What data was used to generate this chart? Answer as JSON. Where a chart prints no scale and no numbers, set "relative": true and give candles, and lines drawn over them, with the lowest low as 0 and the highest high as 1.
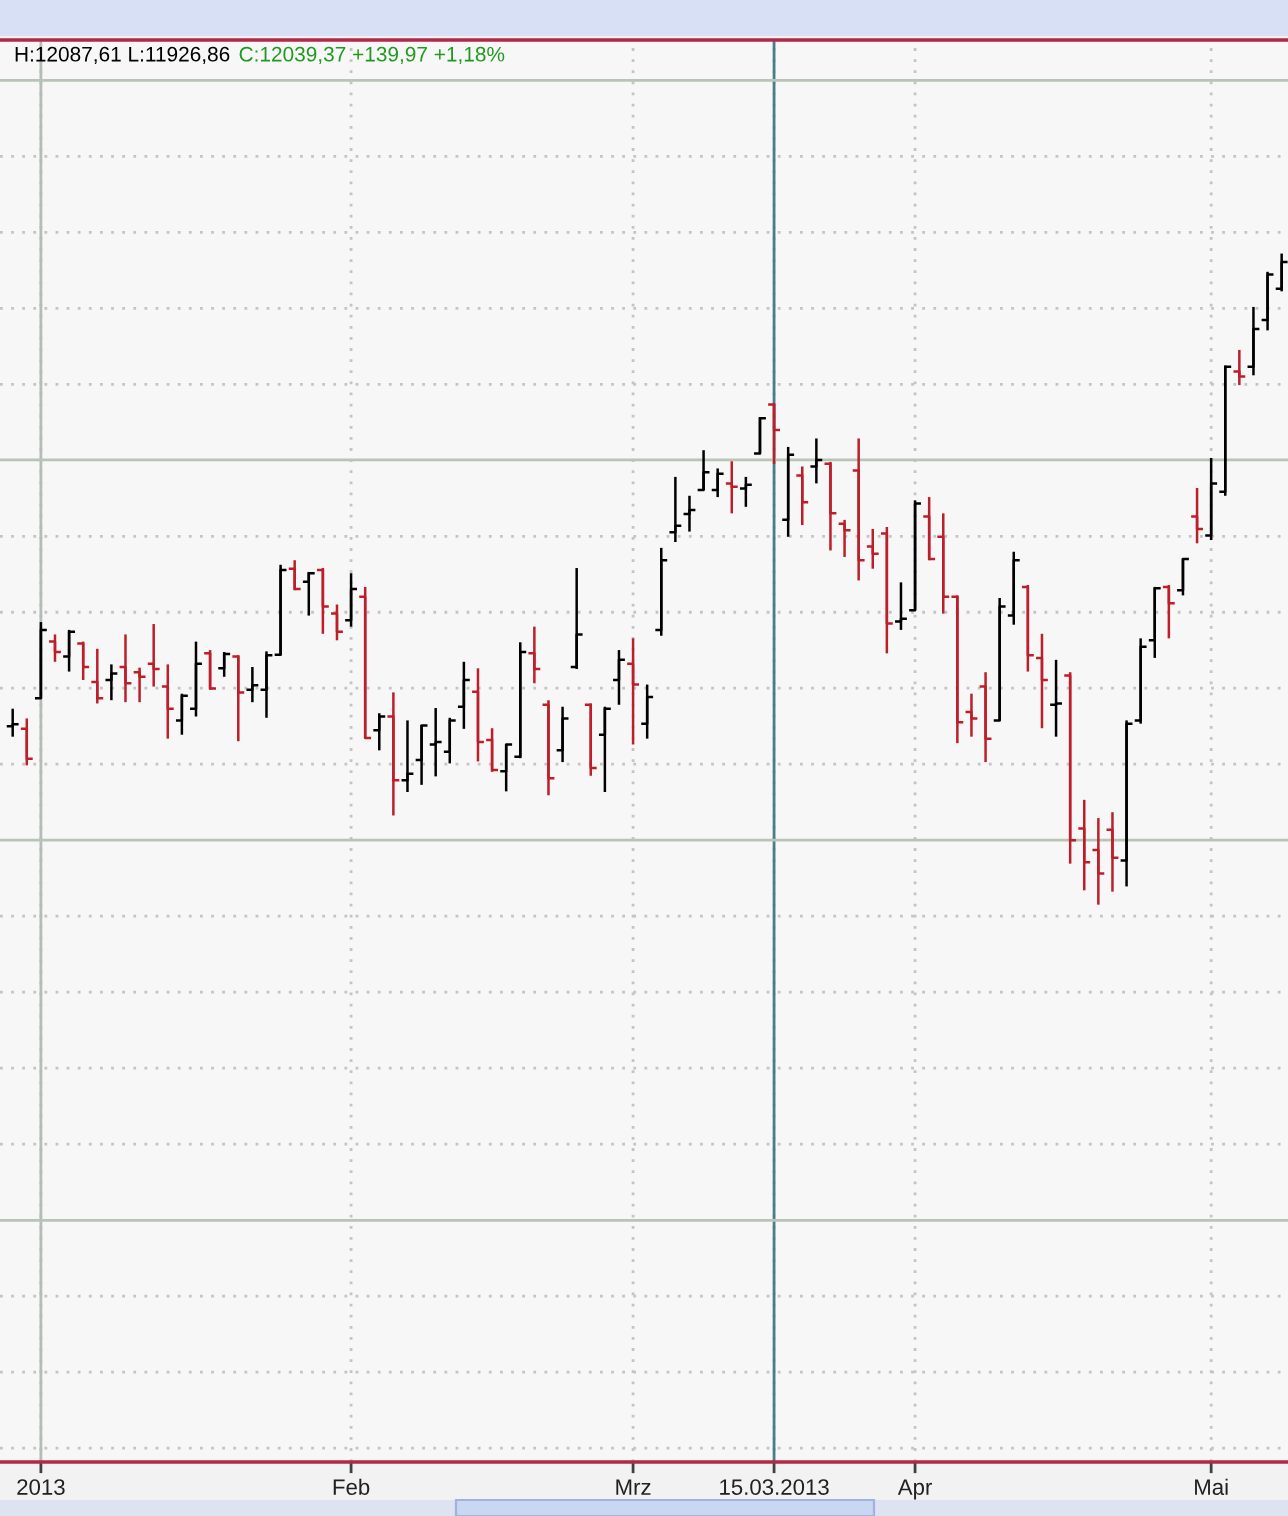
{
  "chart_data": {
    "type": "candlestick",
    "relative": true,
    "grid": true,
    "annotations": [
      "H:12087,61 L:11926,86",
      "C:12039,37 +139,97 +1,18%"
    ],
    "categories": [
      null,
      null,
      "2013",
      null,
      null,
      null,
      null,
      null,
      null,
      null,
      null,
      null,
      null,
      null,
      null,
      null,
      null,
      null,
      null,
      null,
      null,
      null,
      null,
      null,
      "Feb",
      null,
      null,
      null,
      null,
      null,
      null,
      null,
      null,
      null,
      null,
      null,
      null,
      null,
      null,
      null,
      null,
      null,
      null,
      null,
      "Mrz",
      null,
      null,
      null,
      null,
      null,
      null,
      null,
      null,
      null,
      "15.03.2013",
      null,
      null,
      null,
      null,
      null,
      null,
      null,
      null,
      null,
      "Apr",
      null,
      null,
      null,
      null,
      null,
      null,
      null,
      null,
      null,
      null,
      null,
      null,
      null,
      null,
      null,
      null,
      null,
      null,
      null,
      null,
      "Mai",
      null,
      null,
      null,
      null,
      null
    ],
    "ohlc": [
      [
        0.274,
        0.301,
        0.258,
        0.277
      ],
      [
        0.27,
        0.286,
        0.214,
        0.224
      ],
      [
        0.317,
        0.434,
        0.317,
        0.422
      ],
      [
        0.404,
        0.415,
        0.373,
        0.388
      ],
      [
        0.381,
        0.422,
        0.358,
        0.419
      ],
      [
        0.401,
        0.404,
        0.345,
        0.365
      ],
      [
        0.342,
        0.393,
        0.309,
        0.317
      ],
      [
        0.345,
        0.369,
        0.314,
        0.355
      ],
      [
        0.365,
        0.415,
        0.311,
        0.34
      ],
      [
        0.357,
        0.364,
        0.311,
        0.35
      ],
      [
        0.37,
        0.431,
        0.335,
        0.362
      ],
      [
        0.335,
        0.369,
        0.255,
        0.301
      ],
      [
        0.283,
        0.324,
        0.261,
        0.321
      ],
      [
        0.301,
        0.404,
        0.289,
        0.37
      ],
      [
        0.386,
        0.391,
        0.33,
        0.332
      ],
      [
        0.363,
        0.388,
        0.35,
        0.385
      ],
      [
        0.381,
        0.383,
        0.251,
        0.326
      ],
      [
        0.33,
        0.365,
        0.311,
        0.337
      ],
      [
        0.33,
        0.389,
        0.287,
        0.383
      ],
      [
        0.384,
        0.522,
        0.383,
        0.514
      ],
      [
        0.516,
        0.529,
        0.483,
        0.485
      ],
      [
        0.496,
        0.511,
        0.444,
        0.509
      ],
      [
        0.514,
        0.517,
        0.416,
        0.458
      ],
      [
        0.447,
        0.461,
        0.406,
        0.419
      ],
      [
        0.437,
        0.509,
        0.427,
        0.485
      ],
      [
        0.473,
        0.488,
        0.256,
        0.256
      ],
      [
        0.268,
        0.294,
        0.237,
        0.289
      ],
      [
        0.289,
        0.326,
        0.137,
        0.191
      ],
      [
        0.191,
        0.283,
        0.173,
        0.201
      ],
      [
        0.222,
        0.276,
        0.184,
        0.275
      ],
      [
        0.246,
        0.302,
        0.197,
        0.25
      ],
      [
        0.235,
        0.287,
        0.217,
        0.283
      ],
      [
        0.304,
        0.373,
        0.27,
        0.345
      ],
      [
        0.327,
        0.363,
        0.22,
        0.25
      ],
      [
        0.253,
        0.271,
        0.204,
        0.207
      ],
      [
        0.205,
        0.246,
        0.174,
        0.246
      ],
      [
        0.227,
        0.403,
        0.225,
        0.388
      ],
      [
        0.386,
        0.427,
        0.34,
        0.362
      ],
      [
        0.307,
        0.314,
        0.168,
        0.194
      ],
      [
        0.237,
        0.304,
        0.219,
        0.286
      ],
      [
        0.365,
        0.517,
        0.362,
        0.415
      ],
      [
        0.307,
        0.309,
        0.198,
        0.21
      ],
      [
        0.261,
        0.304,
        0.173,
        0.301
      ],
      [
        0.345,
        0.391,
        0.307,
        0.376
      ],
      [
        0.37,
        0.409,
        0.246,
        0.338
      ],
      [
        0.278,
        0.338,
        0.255,
        0.319
      ],
      [
        0.422,
        0.548,
        0.413,
        0.529
      ],
      [
        0.572,
        0.657,
        0.557,
        0.582
      ],
      [
        0.6,
        0.628,
        0.573,
        0.606
      ],
      [
        0.637,
        0.698,
        0.637,
        0.664
      ],
      [
        0.637,
        0.67,
        0.626,
        0.662
      ],
      [
        0.647,
        0.681,
        0.601,
        0.642
      ],
      [
        0.639,
        0.657,
        0.611,
        0.645
      ],
      [
        0.693,
        0.749,
        0.693,
        0.747
      ],
      [
        0.768,
        0.77,
        0.677,
        0.729
      ],
      [
        0.591,
        0.703,
        0.565,
        0.691
      ],
      [
        0.659,
        0.673,
        0.583,
        0.618
      ],
      [
        0.673,
        0.716,
        0.647,
        0.683
      ],
      [
        0.677,
        0.68,
        0.544,
        0.601
      ],
      [
        0.585,
        0.591,
        0.534,
        0.575
      ],
      [
        0.667,
        0.716,
        0.498,
        0.529
      ],
      [
        0.55,
        0.577,
        0.516,
        0.539
      ],
      [
        0.57,
        0.58,
        0.386,
        0.432
      ],
      [
        0.435,
        0.495,
        0.422,
        0.439
      ],
      [
        0.452,
        0.621,
        0.452,
        0.616
      ],
      [
        0.596,
        0.626,
        0.529,
        0.531
      ],
      [
        0.565,
        0.601,
        0.447,
        0.473
      ],
      [
        0.473,
        0.475,
        0.248,
        0.28
      ],
      [
        0.296,
        0.324,
        0.258,
        0.286
      ],
      [
        0.335,
        0.357,
        0.219,
        0.255
      ],
      [
        0.283,
        0.471,
        0.283,
        0.458
      ],
      [
        0.444,
        0.542,
        0.43,
        0.529
      ],
      [
        0.488,
        0.491,
        0.358,
        0.383
      ],
      [
        0.379,
        0.416,
        0.271,
        0.345
      ],
      [
        0.307,
        0.376,
        0.258,
        0.309
      ],
      [
        0.352,
        0.357,
        0.063,
        0.099
      ],
      [
        0.117,
        0.161,
        0.022,
        0.065
      ],
      [
        0.084,
        0.133,
        0.0,
        0.048
      ],
      [
        0.115,
        0.142,
        0.02,
        0.072
      ],
      [
        0.068,
        0.283,
        0.028,
        0.278
      ],
      [
        0.283,
        0.409,
        0.278,
        0.396
      ],
      [
        0.406,
        0.488,
        0.379,
        0.486
      ],
      [
        0.488,
        0.491,
        0.409,
        0.463
      ],
      [
        0.483,
        0.532,
        0.475,
        0.531
      ],
      [
        0.596,
        0.64,
        0.555,
        0.577
      ],
      [
        0.567,
        0.686,
        0.56,
        0.647
      ],
      [
        0.634,
        0.828,
        0.628,
        0.826
      ],
      [
        0.819,
        0.852,
        0.798,
        0.811
      ],
      [
        0.826,
        0.918,
        0.813,
        0.884
      ],
      [
        0.898,
        0.972,
        0.882,
        0.968
      ],
      [
        0.946,
        1.0,
        0.942,
        0.987
      ]
    ],
    "colors": [
      "#000000",
      "#bc1e2a",
      "#000000",
      "#bc1e2a",
      "#000000",
      "#bc1e2a",
      "#bc1e2a",
      "#000000",
      "#bc1e2a",
      "#bc1e2a",
      "#bc1e2a",
      "#bc1e2a",
      "#000000",
      "#000000",
      "#bc1e2a",
      "#000000",
      "#bc1e2a",
      "#000000",
      "#000000",
      "#000000",
      "#bc1e2a",
      "#000000",
      "#bc1e2a",
      "#bc1e2a",
      "#000000",
      "#bc1e2a",
      "#000000",
      "#bc1e2a",
      "#000000",
      "#000000",
      "#000000",
      "#000000",
      "#000000",
      "#bc1e2a",
      "#bc1e2a",
      "#000000",
      "#000000",
      "#bc1e2a",
      "#bc1e2a",
      "#000000",
      "#000000",
      "#bc1e2a",
      "#000000",
      "#000000",
      "#bc1e2a",
      "#000000",
      "#000000",
      "#000000",
      "#000000",
      "#000000",
      "#000000",
      "#bc1e2a",
      "#000000",
      "#000000",
      "#bc1e2a",
      "#000000",
      "#bc1e2a",
      "#000000",
      "#bc1e2a",
      "#bc1e2a",
      "#bc1e2a",
      "#bc1e2a",
      "#bc1e2a",
      "#000000",
      "#000000",
      "#bc1e2a",
      "#bc1e2a",
      "#bc1e2a",
      "#bc1e2a",
      "#bc1e2a",
      "#000000",
      "#000000",
      "#bc1e2a",
      "#bc1e2a",
      "#000000",
      "#bc1e2a",
      "#bc1e2a",
      "#bc1e2a",
      "#bc1e2a",
      "#000000",
      "#000000",
      "#000000",
      "#bc1e2a",
      "#000000",
      "#bc1e2a",
      "#000000",
      "#000000",
      "#bc1e2a",
      "#000000",
      "#000000",
      "#000000"
    ],
    "ref_lines": [
      {
        "axis": "x",
        "value": "2013",
        "color": "#b4bcb4"
      },
      {
        "axis": "x",
        "value": "15.03.2013",
        "color": "#4a7c8a"
      },
      {
        "axis": "y",
        "value": -0.485,
        "color": "#b8c4b8"
      },
      {
        "axis": "y",
        "value": 0.099,
        "color": "#b8c4b8"
      },
      {
        "axis": "y",
        "value": 0.683,
        "color": "#b8c4b8"
      },
      {
        "axis": "y",
        "value": 1.266,
        "color": "#b8c4b8"
      }
    ]
  }
}
